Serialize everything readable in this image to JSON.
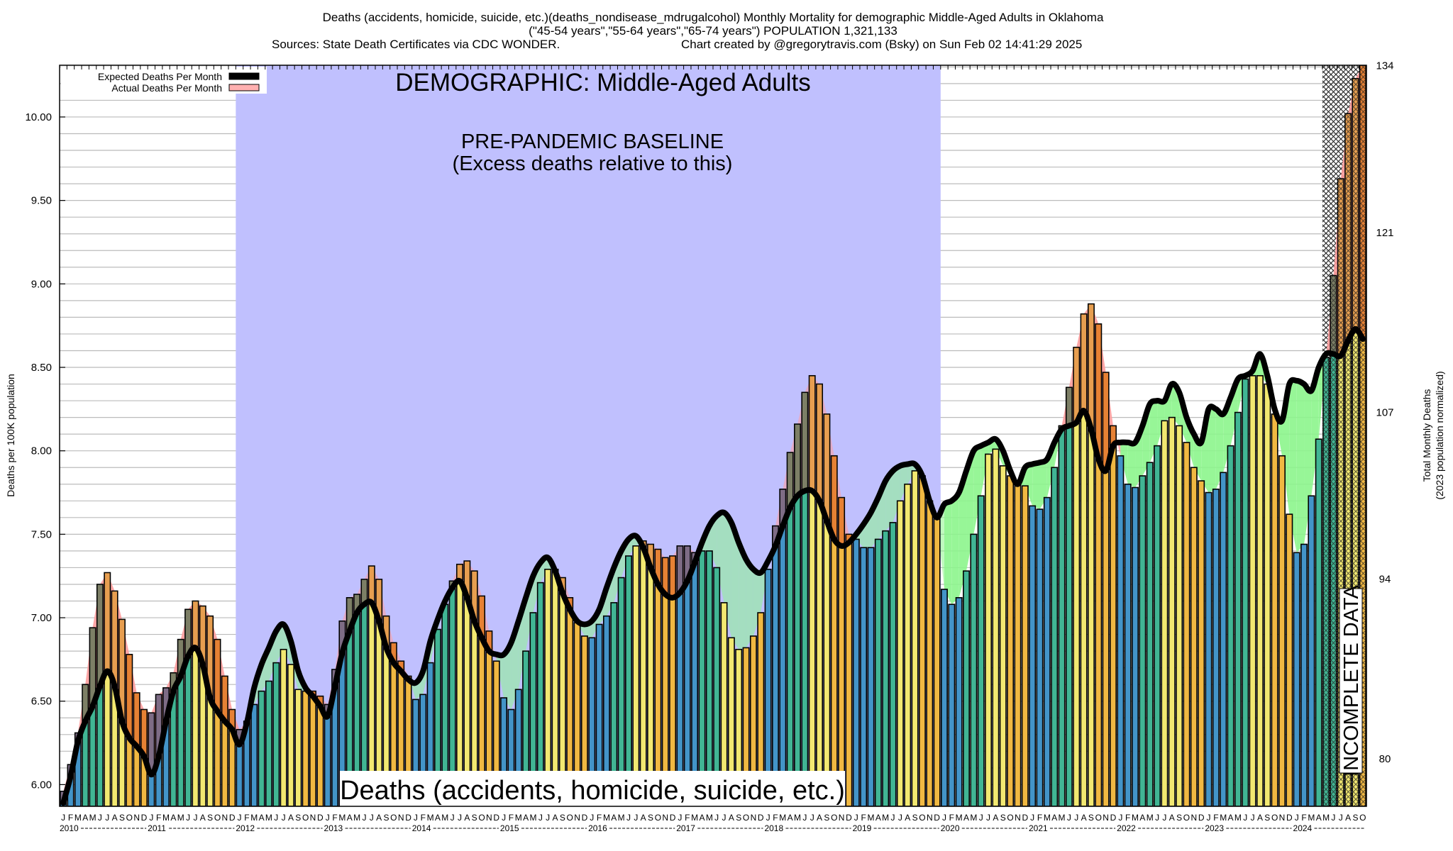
{
  "title": {
    "line1": "Deaths (accidents, homicide, suicide, etc.)(deaths_nondisease_mdrugalcohol) Monthly Mortality for demographic Middle-Aged Adults in Oklahoma",
    "line2": "(\"45-54 years\",\"55-64 years\",\"65-74 years\") POPULATION 1,321,133",
    "line3a": "Sources: State Death Certificates via CDC WONDER.",
    "line3b": "Chart created by @gregorytravis.com (Bsky) on Sun Feb 02 14:41:29 2025"
  },
  "legend": {
    "expected": "Expected Deaths Per Month",
    "actual": "Actual Deaths Per Month"
  },
  "annotations": {
    "demographic": "DEMOGRAPHIC: Middle-Aged Adults",
    "baseline_title": "PRE-PANDEMIC BASELINE",
    "baseline_sub": "(Excess deaths relative to this)",
    "cause": "Deaths (accidents, homicide, suicide, etc.)",
    "incomplete": "INCOMPLETE DATA"
  },
  "colors": {
    "q1": "#4394c8",
    "q2": "#41b594",
    "q3": "#f2e871",
    "q4": "#f0b842",
    "baseline_region": "#c0c0fe",
    "excess_fill": "#ff9c9c",
    "deficit_fill": "#8cf58c",
    "expected_line": "#000000"
  },
  "chart_data": {
    "type": "bar",
    "title": "Deaths (accidents, homicide, suicide, etc.) Monthly Mortality for demographic Middle-Aged Adults in Oklahoma",
    "ylabel": "Deaths per 100K population",
    "ylabel_right": "Total Monthly Deaths",
    "ylabel_right_sub": "(2023 population normalized)",
    "ylim": [
      5.87,
      10.31
    ],
    "yticks": [
      "6.00",
      "6.50",
      "7.00",
      "7.50",
      "8.00",
      "8.50",
      "9.00",
      "9.50",
      "10.00"
    ],
    "right_axis_factor": 13.0,
    "right_ticks": [
      "80",
      "94",
      "107",
      "121",
      "134"
    ],
    "grid": true,
    "grid_step": 0.1,
    "legend_position": "top-left",
    "month_letters": [
      "J",
      "F",
      "M",
      "A",
      "M",
      "J",
      "J",
      "A",
      "S",
      "O",
      "N",
      "D"
    ],
    "years": [
      "2010",
      "2011",
      "2012",
      "2013",
      "2014",
      "2015",
      "2016",
      "2017",
      "2018",
      "2019",
      "2020",
      "2021",
      "2022",
      "2023",
      "2024"
    ],
    "start": "2010-01",
    "end": "2024-10",
    "baseline_period": [
      "2012-01",
      "2019-12"
    ],
    "incomplete_from": "2024-05",
    "actual": [
      5.96,
      6.12,
      6.31,
      6.6,
      6.94,
      7.2,
      7.27,
      7.16,
      6.99,
      6.78,
      6.55,
      6.45,
      6.43,
      6.54,
      6.58,
      6.67,
      6.87,
      7.05,
      7.1,
      7.07,
      7.01,
      6.87,
      6.65,
      6.45,
      6.33,
      6.38,
      6.48,
      6.56,
      6.62,
      6.73,
      6.81,
      6.72,
      6.57,
      6.56,
      6.56,
      6.53,
      6.48,
      6.69,
      6.98,
      7.12,
      7.14,
      7.23,
      7.31,
      7.23,
      7.01,
      6.85,
      6.74,
      6.65,
      6.51,
      6.54,
      6.73,
      6.93,
      7.08,
      7.22,
      7.32,
      7.34,
      7.28,
      7.13,
      6.92,
      6.74,
      6.52,
      6.45,
      6.57,
      6.8,
      7.03,
      7.21,
      7.29,
      7.29,
      7.24,
      7.12,
      6.97,
      6.89,
      6.88,
      6.96,
      7.01,
      7.09,
      7.24,
      7.37,
      7.43,
      7.46,
      7.44,
      7.41,
      7.36,
      7.37,
      7.43,
      7.43,
      7.39,
      7.4,
      7.4,
      7.3,
      7.09,
      6.88,
      6.81,
      6.82,
      6.89,
      7.03,
      7.29,
      7.55,
      7.77,
      7.99,
      8.16,
      8.35,
      8.45,
      8.4,
      8.22,
      7.97,
      7.72,
      7.5,
      7.47,
      7.42,
      7.42,
      7.47,
      7.52,
      7.57,
      7.7,
      7.8,
      7.88,
      7.85,
      7.7,
      7.6,
      7.17,
      7.08,
      7.12,
      7.28,
      7.5,
      7.73,
      7.98,
      8.01,
      7.91,
      7.85,
      7.8,
      7.79,
      7.67,
      7.65,
      7.72,
      7.9,
      8.15,
      8.38,
      8.62,
      8.82,
      8.88,
      8.76,
      8.47,
      8.15,
      7.97,
      7.8,
      7.78,
      7.85,
      7.93,
      8.03,
      8.18,
      8.2,
      8.15,
      8.05,
      7.9,
      7.82,
      7.75,
      7.77,
      7.87,
      8.03,
      8.23,
      8.43,
      8.45,
      8.45,
      8.4,
      8.22,
      7.97,
      7.62,
      7.39,
      7.44,
      7.73,
      8.07,
      8.56,
      9.05,
      9.63,
      10.02,
      10.23,
      10.31
    ],
    "expected": [
      5.89,
      6.05,
      6.26,
      6.38,
      6.47,
      6.59,
      6.68,
      6.59,
      6.38,
      6.28,
      6.23,
      6.17,
      6.06,
      6.17,
      6.38,
      6.56,
      6.65,
      6.77,
      6.82,
      6.72,
      6.52,
      6.44,
      6.38,
      6.33,
      6.24,
      6.37,
      6.58,
      6.72,
      6.82,
      6.92,
      6.96,
      6.86,
      6.68,
      6.58,
      6.53,
      6.47,
      6.41,
      6.59,
      6.79,
      6.92,
      7.03,
      7.08,
      7.09,
      6.98,
      6.82,
      6.73,
      6.68,
      6.63,
      6.61,
      6.68,
      6.86,
      6.99,
      7.1,
      7.18,
      7.22,
      7.12,
      6.98,
      6.88,
      6.8,
      6.78,
      6.78,
      6.85,
      6.98,
      7.12,
      7.25,
      7.33,
      7.36,
      7.28,
      7.15,
      7.05,
      6.98,
      6.96,
      6.98,
      7.05,
      7.18,
      7.3,
      7.4,
      7.47,
      7.49,
      7.42,
      7.3,
      7.2,
      7.14,
      7.12,
      7.15,
      7.22,
      7.33,
      7.45,
      7.55,
      7.61,
      7.63,
      7.57,
      7.45,
      7.35,
      7.29,
      7.27,
      7.34,
      7.43,
      7.55,
      7.66,
      7.73,
      7.76,
      7.76,
      7.7,
      7.58,
      7.47,
      7.43,
      7.45,
      7.5,
      7.56,
      7.63,
      7.72,
      7.82,
      7.88,
      7.91,
      7.92,
      7.92,
      7.85,
      7.7,
      7.6,
      7.68,
      7.7,
      7.75,
      7.88,
      8.0,
      8.03,
      8.05,
      8.07,
      8.0,
      7.88,
      7.8,
      7.9,
      7.92,
      7.93,
      7.95,
      8.05,
      8.13,
      8.15,
      8.17,
      8.24,
      8.13,
      7.95,
      7.88,
      8.03,
      8.05,
      8.05,
      8.05,
      8.15,
      8.28,
      8.3,
      8.3,
      8.4,
      8.35,
      8.2,
      8.1,
      8.05,
      8.25,
      8.25,
      8.22,
      8.32,
      8.43,
      8.45,
      8.48,
      8.58,
      8.45,
      8.25,
      8.18,
      8.4,
      8.42,
      8.4,
      8.36,
      8.5,
      8.58,
      8.58,
      8.57,
      8.66,
      8.73,
      8.67
    ]
  }
}
